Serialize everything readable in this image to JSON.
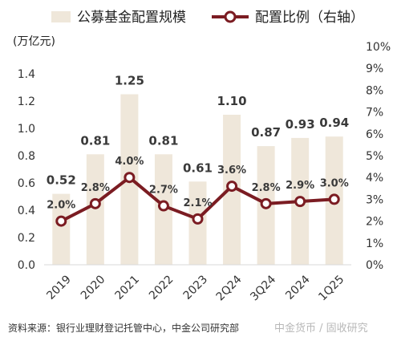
{
  "chart_data": {
    "type": "bar",
    "categories": [
      "2019",
      "2020",
      "2021",
      "2022",
      "2023",
      "2Q24",
      "3Q24",
      "2024",
      "1Q25"
    ],
    "series": [
      {
        "name": "公募基金配置规模",
        "kind": "bar",
        "axis": "left",
        "values": [
          0.52,
          0.81,
          1.25,
          0.81,
          0.61,
          1.1,
          0.87,
          0.93,
          0.94
        ],
        "labels": [
          "0.52",
          "0.81",
          "1.25",
          "0.81",
          "0.61",
          "1.10",
          "0.87",
          "0.93",
          "0.94"
        ],
        "color": "#efe7da"
      },
      {
        "name": "配置比例（右轴）",
        "kind": "line",
        "axis": "right",
        "values": [
          2.0,
          2.8,
          4.0,
          2.7,
          2.1,
          3.6,
          2.8,
          2.9,
          3.0
        ],
        "labels": [
          "2.0%",
          "2.8%",
          "4.0%",
          "2.7%",
          "2.1%",
          "3.6%",
          "2.8%",
          "2.9%",
          "3.0%"
        ],
        "color": "#7b1c22"
      }
    ],
    "y_left": {
      "label": "(万亿元)",
      "range": [
        0,
        1.6
      ],
      "ticks": [
        "0.0",
        "0.2",
        "0.4",
        "0.6",
        "0.8",
        "1.0",
        "1.2",
        "1.4"
      ]
    },
    "y_right": {
      "range": [
        0,
        10
      ],
      "ticks": [
        "0%",
        "1%",
        "2%",
        "3%",
        "4%",
        "5%",
        "6%",
        "7%",
        "8%",
        "9%",
        "10%"
      ]
    },
    "legend_position": "top",
    "grid": false
  },
  "source": "资料来源：银行业理财登记托管中心，中金公司研究部",
  "watermark": "中金货币 / 固收研究"
}
